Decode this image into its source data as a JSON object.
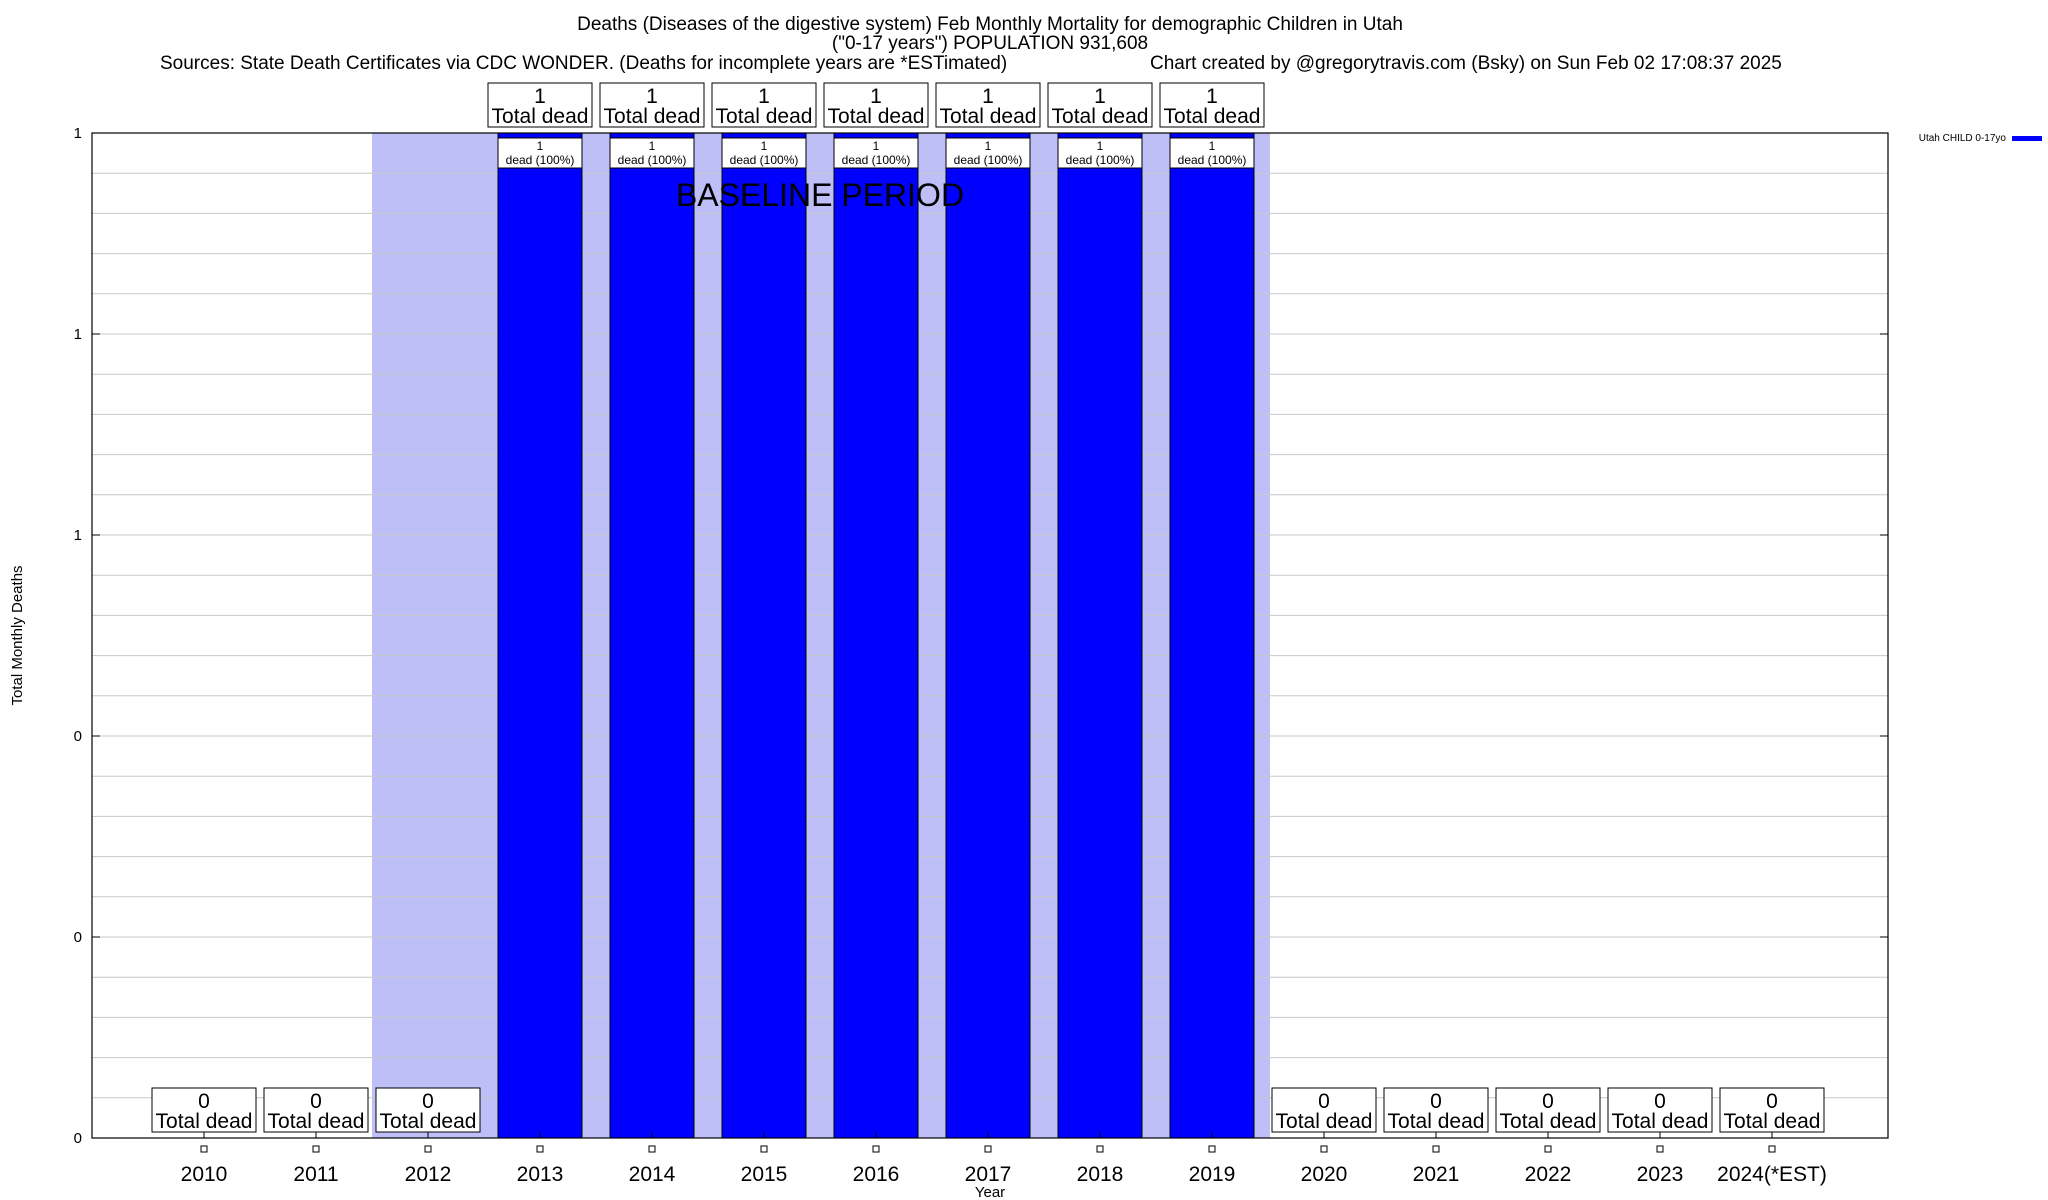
{
  "header": {
    "title_line1": "Deaths (Diseases of the digestive system) Feb Monthly Mortality for demographic Children in Utah",
    "title_line2": "(\"0-17 years\") POPULATION 931,608",
    "sources": "Sources: State Death Certificates via CDC WONDER. (Deaths for incomplete years are *ESTimated)",
    "credit": "Chart created by @gregorytravis.com (Bsky) on Sun Feb 02 17:08:37 2025"
  },
  "chart_data": {
    "type": "bar",
    "categories": [
      "2010",
      "2011",
      "2012",
      "2013",
      "2014",
      "2015",
      "2016",
      "2017",
      "2018",
      "2019",
      "2020",
      "2021",
      "2022",
      "2023",
      "2024(*EST)"
    ],
    "series": [
      {
        "name": "Utah CHILD 0-17yo",
        "values": [
          0,
          0,
          0,
          1,
          1,
          1,
          1,
          1,
          1,
          1,
          0,
          0,
          0,
          0,
          0
        ],
        "color": "#0000ff"
      }
    ],
    "xlabel": "Year",
    "ylabel": "Total Monthly Deaths",
    "ylim": [
      0,
      1
    ],
    "y_tick_labels": [
      "0",
      "0",
      "0",
      "1",
      "1",
      "1"
    ],
    "grid": true,
    "legend_position": "top-right",
    "total_label_suffix": "Total dead",
    "bar_label_suffix": "dead (100%)",
    "baseline_label": "BASELINE PERIOD",
    "baseline_start": "2012",
    "baseline_end": "2019",
    "baseline_color": "#bfbff7"
  }
}
